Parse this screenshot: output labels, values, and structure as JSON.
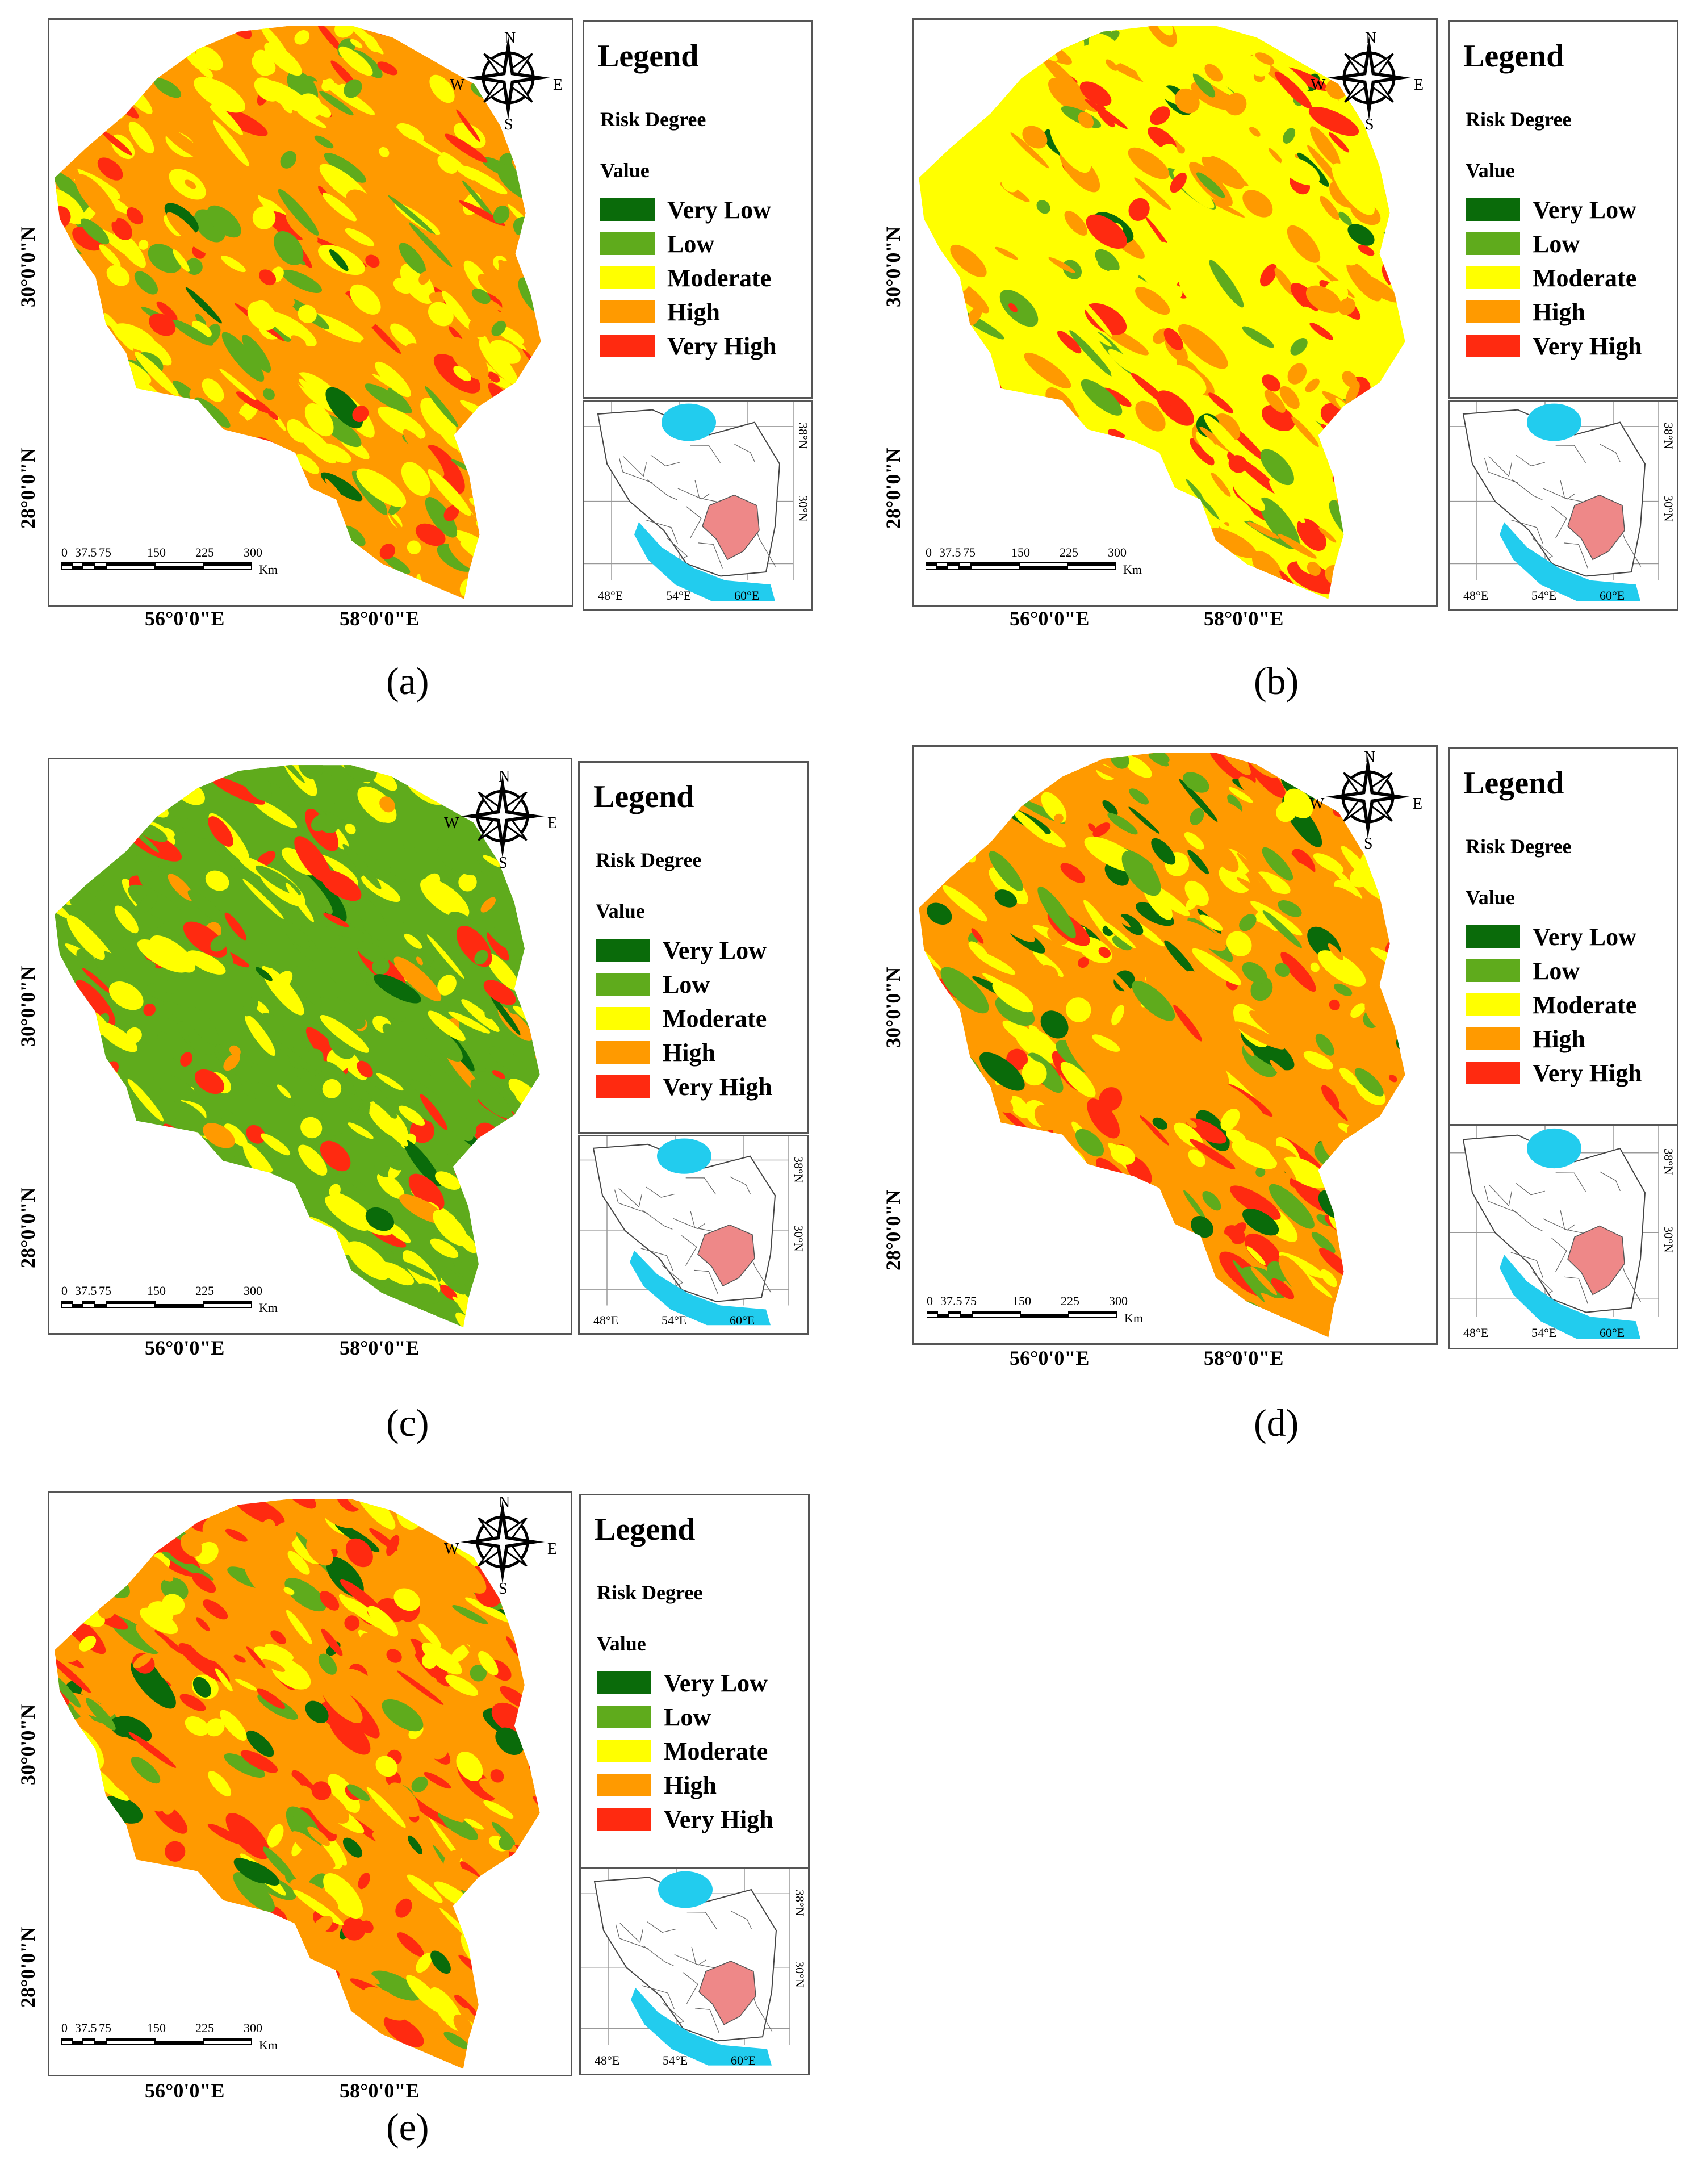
{
  "panels": [
    {
      "id": "a",
      "caption": "(a)",
      "variant": "a"
    },
    {
      "id": "b",
      "caption": "(b)",
      "variant": "b"
    },
    {
      "id": "c",
      "caption": "(c)",
      "variant": "c"
    },
    {
      "id": "d",
      "caption": "(d)",
      "variant": "d"
    },
    {
      "id": "e",
      "caption": "(e)",
      "variant": "e"
    }
  ],
  "legend": {
    "title": "Legend",
    "subtitle": "Risk Degree",
    "value_label": "Value",
    "classes": [
      {
        "label": "Very Low",
        "color": "#0a6b0a"
      },
      {
        "label": "Low",
        "color": "#5fab1c"
      },
      {
        "label": "Moderate",
        "color": "#ffff00"
      },
      {
        "label": "High",
        "color": "#ff9a00"
      },
      {
        "label": "Very High",
        "color": "#ff2a10"
      }
    ]
  },
  "compass": {
    "n": "N",
    "s": "S",
    "e": "E",
    "w": "W",
    "icon": "compass-rose-icon"
  },
  "scale_bar": {
    "ticks": [
      "0",
      "37.5",
      "75",
      "150",
      "225",
      "300"
    ],
    "unit": "Km"
  },
  "axes": {
    "lon_labels": [
      "56°0'0\"E",
      "58°0'0\"E"
    ],
    "lat_labels": [
      "30°0'0\"N",
      "28°0'0\"N"
    ]
  },
  "inset": {
    "lon_labels": [
      "48°E",
      "54°E",
      "60°E"
    ],
    "lat_labels": [
      "38°N",
      "30°N"
    ],
    "colors": {
      "water": "#22ccee",
      "study_area": "#ee8888",
      "borders": "#444444"
    }
  }
}
